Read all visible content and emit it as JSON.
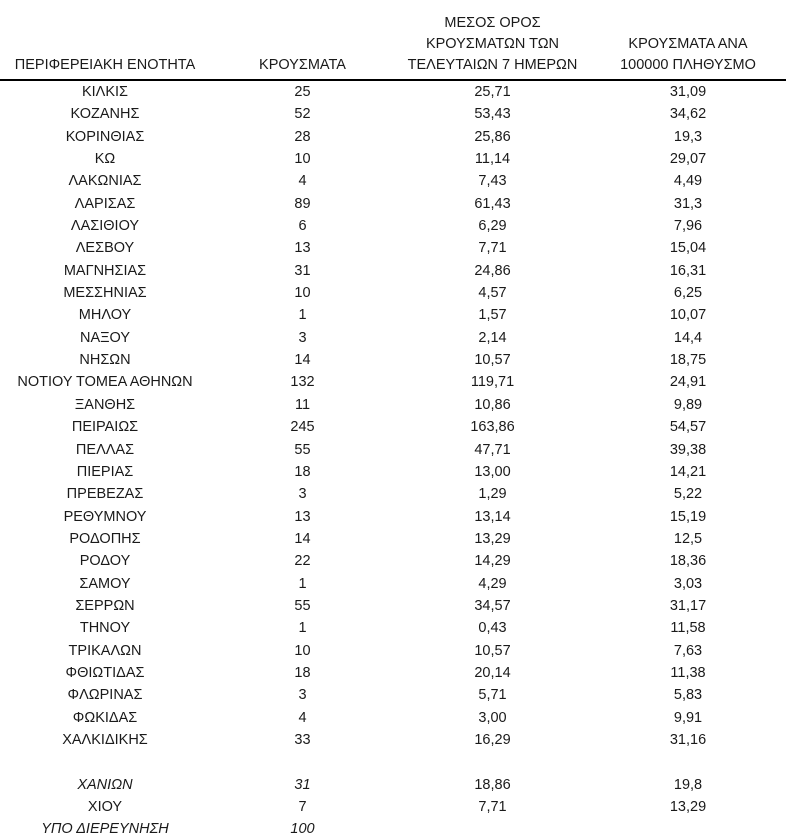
{
  "page": {
    "background": "#ffffff",
    "text_color": "#1a1a1a",
    "header_border_color": "#000000"
  },
  "table": {
    "headers": [
      {
        "id": "region",
        "lines": [
          "ΠΕΡΙΦΕΡΕΙΑΚΗ ΕΝΟΤΗΤΑ"
        ]
      },
      {
        "id": "cases",
        "lines": [
          "ΚΡΟΥΣΜΑΤΑ"
        ]
      },
      {
        "id": "avg7",
        "lines": [
          "ΜΕΣΟΣ ΟΡΟΣ",
          "ΚΡΟΥΣΜΑΤΩΝ ΤΩΝ",
          "ΤΕΛΕΥΤΑΙΩΝ 7 ΗΜΕΡΩΝ"
        ]
      },
      {
        "id": "per100k",
        "lines": [
          "ΚΡΟΥΣΜΑΤΑ ΑΝΑ",
          "100000 ΠΛΗΘΥΣΜΟ"
        ]
      }
    ],
    "rows": [
      {
        "region": "ΚΙΛΚΙΣ",
        "cases": "25",
        "avg7": "25,71",
        "per100k": "31,09",
        "italic": false
      },
      {
        "region": "ΚΟΖΑΝΗΣ",
        "cases": "52",
        "avg7": "53,43",
        "per100k": "34,62",
        "italic": false
      },
      {
        "region": "ΚΟΡΙΝΘΙΑΣ",
        "cases": "28",
        "avg7": "25,86",
        "per100k": "19,3",
        "italic": false
      },
      {
        "region": "ΚΩ",
        "cases": "10",
        "avg7": "11,14",
        "per100k": "29,07",
        "italic": false
      },
      {
        "region": "ΛΑΚΩΝΙΑΣ",
        "cases": "4",
        "avg7": "7,43",
        "per100k": "4,49",
        "italic": false
      },
      {
        "region": "ΛΑΡΙΣΑΣ",
        "cases": "89",
        "avg7": "61,43",
        "per100k": "31,3",
        "italic": false
      },
      {
        "region": "ΛΑΣΙΘΙΟΥ",
        "cases": "6",
        "avg7": "6,29",
        "per100k": "7,96",
        "italic": false
      },
      {
        "region": "ΛΕΣΒΟΥ",
        "cases": "13",
        "avg7": "7,71",
        "per100k": "15,04",
        "italic": false
      },
      {
        "region": "ΜΑΓΝΗΣΙΑΣ",
        "cases": "31",
        "avg7": "24,86",
        "per100k": "16,31",
        "italic": false
      },
      {
        "region": "ΜΕΣΣΗΝΙΑΣ",
        "cases": "10",
        "avg7": "4,57",
        "per100k": "6,25",
        "italic": false
      },
      {
        "region": "ΜΗΛΟΥ",
        "cases": "1",
        "avg7": "1,57",
        "per100k": "10,07",
        "italic": false
      },
      {
        "region": "ΝΑΞΟΥ",
        "cases": "3",
        "avg7": "2,14",
        "per100k": "14,4",
        "italic": false
      },
      {
        "region": "ΝΗΣΩΝ",
        "cases": "14",
        "avg7": "10,57",
        "per100k": "18,75",
        "italic": false
      },
      {
        "region": "ΝΟΤΙΟΥ ΤΟΜΕΑ ΑΘΗΝΩΝ",
        "cases": "132",
        "avg7": "119,71",
        "per100k": "24,91",
        "italic": false
      },
      {
        "region": "ΞΑΝΘΗΣ",
        "cases": "11",
        "avg7": "10,86",
        "per100k": "9,89",
        "italic": false
      },
      {
        "region": "ΠΕΙΡΑΙΩΣ",
        "cases": "245",
        "avg7": "163,86",
        "per100k": "54,57",
        "italic": false
      },
      {
        "region": "ΠΕΛΛΑΣ",
        "cases": "55",
        "avg7": "47,71",
        "per100k": "39,38",
        "italic": false
      },
      {
        "region": "ΠΙΕΡΙΑΣ",
        "cases": "18",
        "avg7": "13,00",
        "per100k": "14,21",
        "italic": false
      },
      {
        "region": "ΠΡΕΒΕΖΑΣ",
        "cases": "3",
        "avg7": "1,29",
        "per100k": "5,22",
        "italic": false
      },
      {
        "region": "ΡΕΘΥΜΝΟΥ",
        "cases": "13",
        "avg7": "13,14",
        "per100k": "15,19",
        "italic": false
      },
      {
        "region": "ΡΟΔΟΠΗΣ",
        "cases": "14",
        "avg7": "13,29",
        "per100k": "12,5",
        "italic": false
      },
      {
        "region": "ΡΟΔΟΥ",
        "cases": "22",
        "avg7": "14,29",
        "per100k": "18,36",
        "italic": false
      },
      {
        "region": "ΣΑΜΟΥ",
        "cases": "1",
        "avg7": "4,29",
        "per100k": "3,03",
        "italic": false
      },
      {
        "region": "ΣΕΡΡΩΝ",
        "cases": "55",
        "avg7": "34,57",
        "per100k": "31,17",
        "italic": false
      },
      {
        "region": "ΤΗΝΟΥ",
        "cases": "1",
        "avg7": "0,43",
        "per100k": "11,58",
        "italic": false
      },
      {
        "region": "ΤΡΙΚΑΛΩΝ",
        "cases": "10",
        "avg7": "10,57",
        "per100k": "7,63",
        "italic": false
      },
      {
        "region": "ΦΘΙΩΤΙΔΑΣ",
        "cases": "18",
        "avg7": "20,14",
        "per100k": "11,38",
        "italic": false
      },
      {
        "region": "ΦΛΩΡΙΝΑΣ",
        "cases": "3",
        "avg7": "5,71",
        "per100k": "5,83",
        "italic": false
      },
      {
        "region": "ΦΩΚΙΔΑΣ",
        "cases": "4",
        "avg7": "3,00",
        "per100k": "9,91",
        "italic": false
      },
      {
        "region": "ΧΑΛΚΙΔΙΚΗΣ",
        "cases": "33",
        "avg7": "16,29",
        "per100k": "31,16",
        "italic": false
      },
      {
        "spacer": true
      },
      {
        "region": "ΧΑΝΙΩΝ",
        "cases": "31",
        "avg7": "18,86",
        "per100k": "19,8",
        "italic": true
      },
      {
        "region": "ΧΙΟΥ",
        "cases": "7",
        "avg7": "7,71",
        "per100k": "13,29",
        "italic": false
      },
      {
        "region": "ΥΠΟ ΔΙΕΡΕΥΝΗΣΗ",
        "cases": "100",
        "avg7": "",
        "per100k": "",
        "italic": true
      }
    ]
  }
}
